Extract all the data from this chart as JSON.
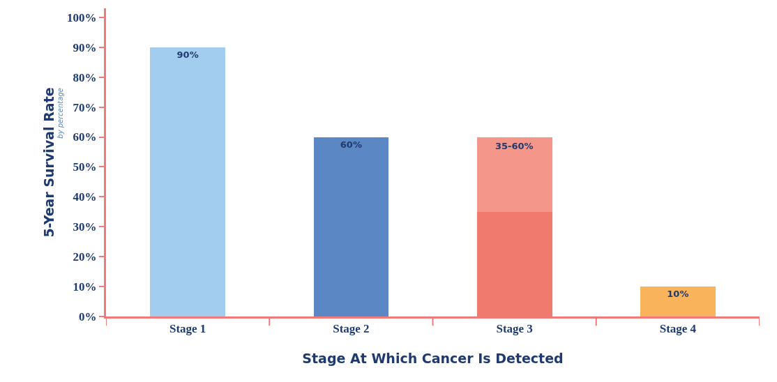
{
  "chart_data": {
    "type": "bar",
    "stacked": true,
    "categories": [
      "Stage 1",
      "Stage 2",
      "Stage 3",
      "Stage 4"
    ],
    "series": [
      {
        "colors": [
          "#a3cdef",
          "#5b87c5",
          "#f07a6e",
          "#f9b35a"
        ],
        "values": [
          90,
          60,
          35,
          10
        ],
        "value_labels": [
          "90%",
          "60%",
          null,
          "10%"
        ]
      },
      {
        "color": "#f4968a",
        "values": [
          null,
          null,
          25,
          null
        ]
      }
    ],
    "xlabel": "Stage At Which Cancer Is Detected",
    "ylabel": "5-Year Survival Rate",
    "annotations": [
      "by percentage",
      {
        "text": "35-60%",
        "x": "Stage 3",
        "y": 60
      }
    ],
    "ylim": [
      0,
      103
    ],
    "yticks": [
      {
        "value": 0,
        "label": "0%"
      },
      {
        "value": 10,
        "label": "10%"
      },
      {
        "value": 20,
        "label": "20%"
      },
      {
        "value": 30,
        "label": "30%"
      },
      {
        "value": 40,
        "label": "40%"
      },
      {
        "value": 50,
        "label": "50%"
      },
      {
        "value": 60,
        "label": "60%"
      },
      {
        "value": 70,
        "label": "70%"
      },
      {
        "value": 80,
        "label": "80%"
      },
      {
        "value": 90,
        "label": "90%"
      },
      {
        "value": 100,
        "label": "100%"
      }
    ]
  }
}
